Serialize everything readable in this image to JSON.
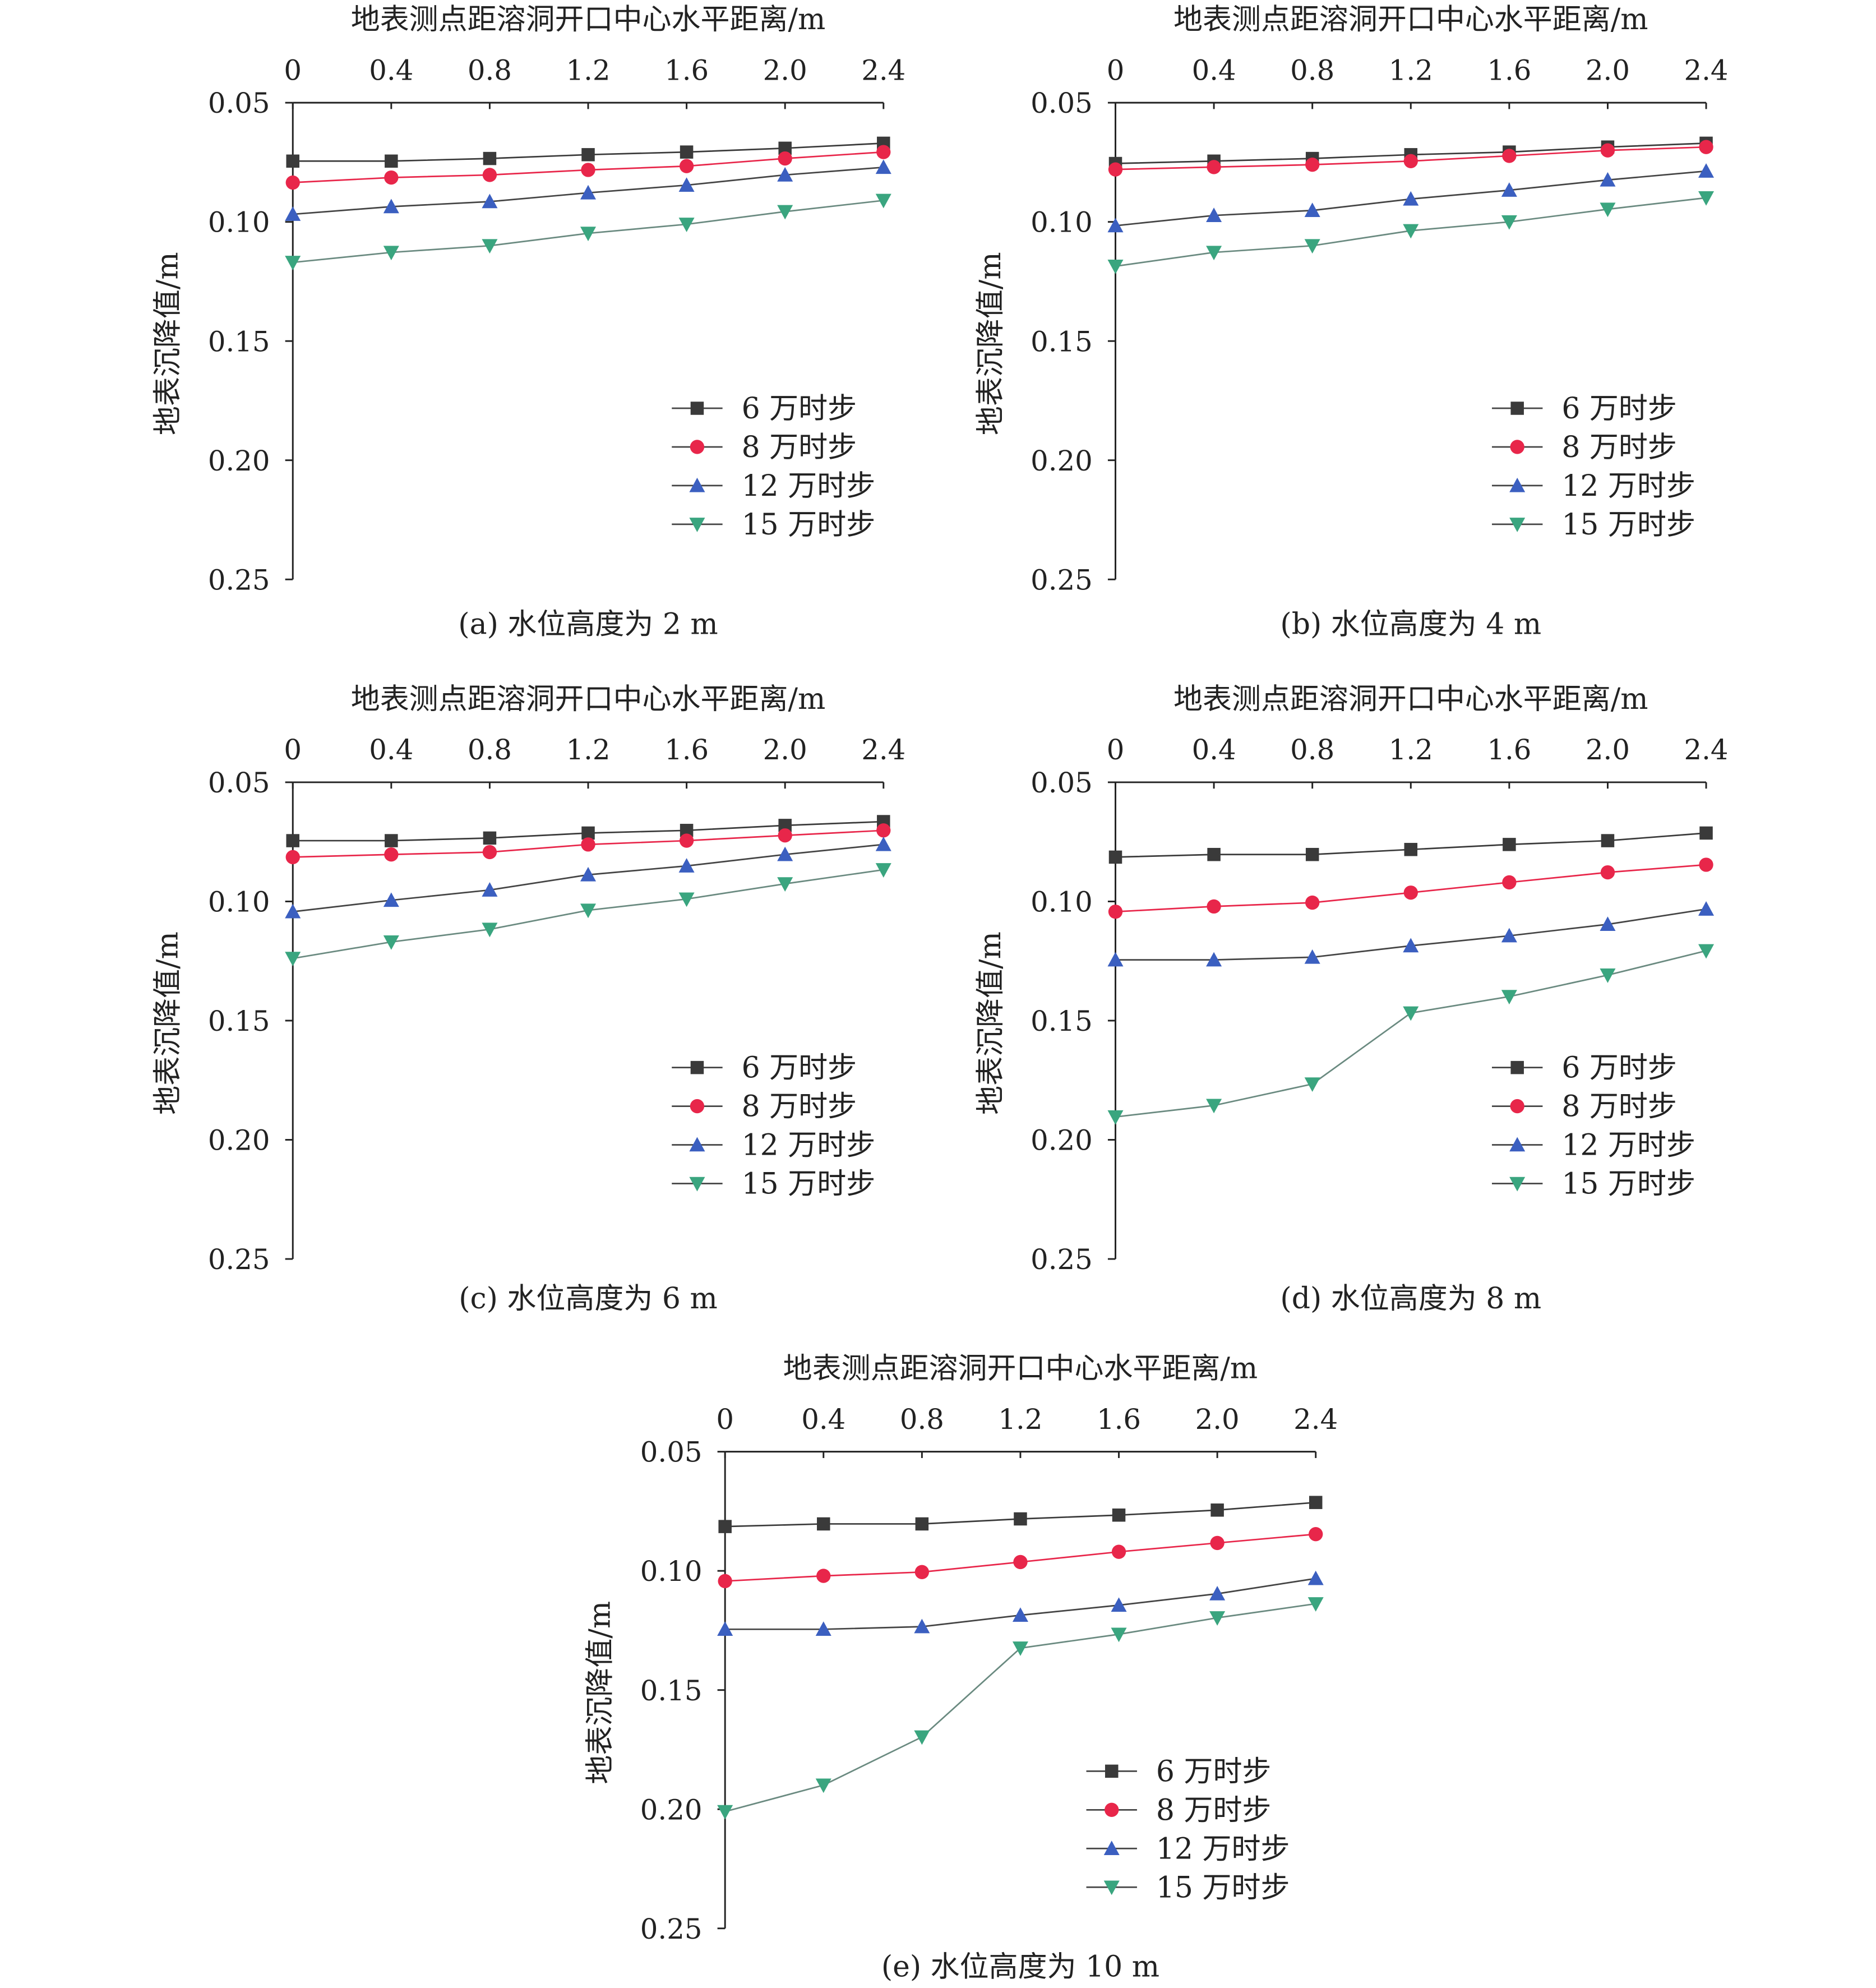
{
  "chart_data": [
    {
      "type": "line",
      "caption": "(a) 水位高度为 2 m",
      "xlabel": "地表测点距溶洞开口中心水平距离/m",
      "ylabel": "地表沉降值/m",
      "x": [
        0,
        0.4,
        0.8,
        1.2,
        1.6,
        2.0,
        2.4
      ],
      "x_tick_labels": [
        "0",
        "0.4",
        "0.8",
        "1.2",
        "1.6",
        "2.0",
        "2.4"
      ],
      "y_tick_labels": [
        "0.05",
        "0.10",
        "0.15",
        "0.20",
        "0.25"
      ],
      "xlim": [
        0,
        2.4
      ],
      "ylim": [
        0.05,
        0.25
      ],
      "y_inverted": true,
      "x_axis_position": "top",
      "legend_position": "center-right",
      "series": [
        {
          "name": "6 万时步",
          "color": "#3a3a3a",
          "marker": "square",
          "values": [
            0.0745,
            0.0745,
            0.0734,
            0.0718,
            0.0707,
            0.0691,
            0.067
          ]
        },
        {
          "name": "8 万时步",
          "color": "#e8264a",
          "marker": "circle",
          "values": [
            0.0835,
            0.0814,
            0.0803,
            0.0782,
            0.0766,
            0.0734,
            0.0707
          ]
        },
        {
          "name": "12 万时步",
          "color": "#3b5fc0",
          "marker": "triangle-up",
          "values": [
            0.0968,
            0.0936,
            0.0915,
            0.0878,
            0.0846,
            0.0803,
            0.0771
          ]
        },
        {
          "name": "15 万时步",
          "color": "#3aa57f",
          "marker": "triangle-down",
          "values": [
            0.117,
            0.1128,
            0.11,
            0.1048,
            0.101,
            0.0957,
            0.091
          ]
        }
      ]
    },
    {
      "type": "line",
      "caption": "(b) 水位高度为 4 m",
      "xlabel": "地表测点距溶洞开口中心水平距离/m",
      "ylabel": "地表沉降值/m",
      "x": [
        0,
        0.4,
        0.8,
        1.2,
        1.6,
        2.0,
        2.4
      ],
      "x_tick_labels": [
        "0",
        "0.4",
        "0.8",
        "1.2",
        "1.6",
        "2.0",
        "2.4"
      ],
      "y_tick_labels": [
        "0.05",
        "0.10",
        "0.15",
        "0.20",
        "0.25"
      ],
      "xlim": [
        0,
        2.4
      ],
      "ylim": [
        0.05,
        0.25
      ],
      "y_inverted": true,
      "x_axis_position": "top",
      "legend_position": "center-right",
      "series": [
        {
          "name": "6 万时步",
          "color": "#3a3a3a",
          "marker": "square",
          "values": [
            0.0755,
            0.0745,
            0.0734,
            0.0718,
            0.0707,
            0.0686,
            0.067
          ]
        },
        {
          "name": "8 万时步",
          "color": "#e8264a",
          "marker": "circle",
          "values": [
            0.078,
            0.077,
            0.076,
            0.0745,
            0.0723,
            0.07,
            0.0686
          ]
        },
        {
          "name": "12 万时步",
          "color": "#3b5fc0",
          "marker": "triangle-up",
          "values": [
            0.1016,
            0.0973,
            0.0952,
            0.0904,
            0.0867,
            0.0824,
            0.0787
          ]
        },
        {
          "name": "15 万时步",
          "color": "#3aa57f",
          "marker": "triangle-down",
          "values": [
            0.1186,
            0.1128,
            0.11,
            0.1037,
            0.1,
            0.0947,
            0.0899
          ]
        }
      ]
    },
    {
      "type": "line",
      "caption": "(c) 水位高度为 6 m",
      "xlabel": "地表测点距溶洞开口中心水平距离/m",
      "ylabel": "地表沉降值/m",
      "x": [
        0,
        0.4,
        0.8,
        1.2,
        1.6,
        2.0,
        2.4
      ],
      "x_tick_labels": [
        "0",
        "0.4",
        "0.8",
        "1.2",
        "1.6",
        "2.0",
        "2.4"
      ],
      "y_tick_labels": [
        "0.05",
        "0.10",
        "0.15",
        "0.20",
        "0.25"
      ],
      "xlim": [
        0,
        2.4
      ],
      "ylim": [
        0.05,
        0.25
      ],
      "y_inverted": true,
      "x_axis_position": "top",
      "legend_position": "center-right",
      "series": [
        {
          "name": "6 万时步",
          "color": "#3a3a3a",
          "marker": "square",
          "values": [
            0.0745,
            0.0745,
            0.0734,
            0.0713,
            0.0702,
            0.0681,
            0.0665
          ]
        },
        {
          "name": "8 万时步",
          "color": "#e8264a",
          "marker": "circle",
          "values": [
            0.0814,
            0.0803,
            0.0793,
            0.0761,
            0.0745,
            0.0723,
            0.0702
          ]
        },
        {
          "name": "12 万时步",
          "color": "#3b5fc0",
          "marker": "triangle-up",
          "values": [
            0.1043,
            0.0995,
            0.0952,
            0.0888,
            0.0851,
            0.0803,
            0.0761
          ]
        },
        {
          "name": "15 万时步",
          "color": "#3aa57f",
          "marker": "triangle-down",
          "values": [
            0.1239,
            0.117,
            0.1117,
            0.1037,
            0.099,
            0.0926,
            0.0867
          ]
        }
      ]
    },
    {
      "type": "line",
      "caption": "(d) 水位高度为 8 m",
      "xlabel": "地表测点距溶洞开口中心水平距离/m",
      "ylabel": "地表沉降值/m",
      "x": [
        0,
        0.4,
        0.8,
        1.2,
        1.6,
        2.0,
        2.4
      ],
      "x_tick_labels": [
        "0",
        "0.4",
        "0.8",
        "1.2",
        "1.6",
        "2.0",
        "2.4"
      ],
      "y_tick_labels": [
        "0.05",
        "0.10",
        "0.15",
        "0.20",
        "0.25"
      ],
      "xlim": [
        0,
        2.4
      ],
      "ylim": [
        0.05,
        0.25
      ],
      "y_inverted": true,
      "x_axis_position": "top",
      "legend_position": "lower-right",
      "series": [
        {
          "name": "6 万时步",
          "color": "#3a3a3a",
          "marker": "square",
          "values": [
            0.0814,
            0.0803,
            0.0803,
            0.0782,
            0.0761,
            0.0745,
            0.0713
          ]
        },
        {
          "name": "8 万时步",
          "color": "#e8264a",
          "marker": "circle",
          "values": [
            0.1043,
            0.1021,
            0.1005,
            0.0963,
            0.092,
            0.0878,
            0.0846
          ]
        },
        {
          "name": "12 万时步",
          "color": "#3b5fc0",
          "marker": "triangle-up",
          "values": [
            0.1245,
            0.1245,
            0.1234,
            0.1186,
            0.1144,
            0.1096,
            0.1032
          ]
        },
        {
          "name": "15 万时步",
          "color": "#3aa57f",
          "marker": "triangle-down",
          "values": [
            0.1904,
            0.1856,
            0.1766,
            0.1468,
            0.1399,
            0.1309,
            0.1207
          ]
        }
      ]
    },
    {
      "type": "line",
      "caption": "(e) 水位高度为 10 m",
      "xlabel": "地表测点距溶洞开口中心水平距离/m",
      "ylabel": "地表沉降值/m",
      "x": [
        0,
        0.4,
        0.8,
        1.2,
        1.6,
        2.0,
        2.4
      ],
      "x_tick_labels": [
        "0",
        "0.4",
        "0.8",
        "1.2",
        "1.6",
        "2.0",
        "2.4"
      ],
      "y_tick_labels": [
        "0.05",
        "0.10",
        "0.15",
        "0.20",
        "0.25"
      ],
      "xlim": [
        0,
        2.4
      ],
      "ylim": [
        0.05,
        0.25
      ],
      "y_inverted": true,
      "x_axis_position": "top",
      "legend_position": "lower-right",
      "series": [
        {
          "name": "6 万时步",
          "color": "#3a3a3a",
          "marker": "square",
          "values": [
            0.0814,
            0.0803,
            0.0803,
            0.0782,
            0.0766,
            0.0745,
            0.0713
          ]
        },
        {
          "name": "8 万时步",
          "color": "#e8264a",
          "marker": "circle",
          "values": [
            0.1043,
            0.1021,
            0.1005,
            0.0963,
            0.092,
            0.0883,
            0.0846
          ]
        },
        {
          "name": "12 万时步",
          "color": "#3b5fc0",
          "marker": "triangle-up",
          "values": [
            0.1245,
            0.1245,
            0.1234,
            0.1186,
            0.1144,
            0.1096,
            0.1032
          ]
        },
        {
          "name": "15 万时步",
          "color": "#3aa57f",
          "marker": "triangle-down",
          "values": [
            0.201,
            0.1899,
            0.1697,
            0.1324,
            0.1266,
            0.1197,
            0.1138
          ]
        }
      ]
    }
  ]
}
